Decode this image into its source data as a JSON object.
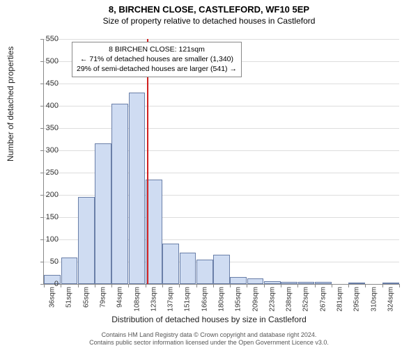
{
  "title": "8, BIRCHEN CLOSE, CASTLEFORD, WF10 5EP",
  "subtitle": "Size of property relative to detached houses in Castleford",
  "y_axis_label": "Number of detached properties",
  "x_axis_label": "Distribution of detached houses by size in Castleford",
  "footer_line1": "Contains HM Land Registry data © Crown copyright and database right 2024.",
  "footer_line2": "Contains public sector information licensed under the Open Government Licence v3.0.",
  "annotation": {
    "line1": "8 BIRCHEN CLOSE: 121sqm",
    "line2": "← 71% of detached houses are smaller (1,340)",
    "line3": "29% of semi-detached houses are larger (541) →"
  },
  "chart": {
    "type": "histogram",
    "ylim": [
      0,
      550
    ],
    "ytick_step": 50,
    "bar_color": "#cfdcf2",
    "bar_border_color": "#6a7fa8",
    "grid_color": "#dddddd",
    "axis_color": "#888888",
    "ref_line_color": "#d02020",
    "ref_line_x_index": 6.1,
    "x_categories": [
      "36sqm",
      "51sqm",
      "65sqm",
      "79sqm",
      "94sqm",
      "108sqm",
      "123sqm",
      "137sqm",
      "151sqm",
      "166sqm",
      "180sqm",
      "195sqm",
      "209sqm",
      "223sqm",
      "238sqm",
      "252sqm",
      "267sqm",
      "281sqm",
      "295sqm",
      "310sqm",
      "324sqm"
    ],
    "values": [
      20,
      60,
      195,
      315,
      405,
      430,
      235,
      90,
      70,
      55,
      65,
      15,
      12,
      7,
      5,
      5,
      4,
      0,
      3,
      0,
      2
    ],
    "label_fontsize": 12,
    "tick_fontsize": 11
  }
}
